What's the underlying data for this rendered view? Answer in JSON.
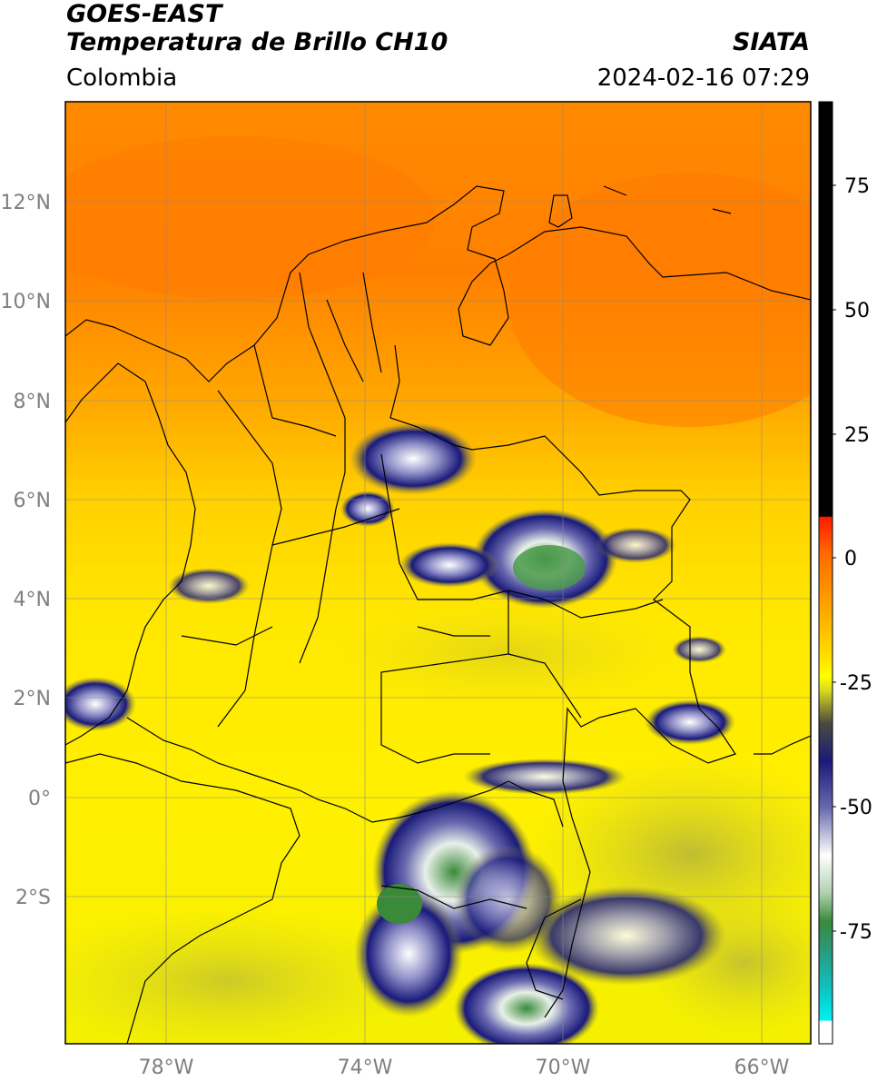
{
  "header": {
    "satellite": "GOES-EAST",
    "product": "Temperatura de Brillo CH10",
    "source": "SIATA",
    "region": "Colombia",
    "datetime": "2024-02-16 07:29"
  },
  "axes": {
    "lat_ticks": [
      "12°N",
      "10°N",
      "8°N",
      "6°N",
      "4°N",
      "2°N",
      "0°",
      "2°S"
    ],
    "lon_ticks": [
      "78°W",
      "74°W",
      "70°W",
      "66°W"
    ]
  },
  "colorbar": {
    "ticks": [
      "75",
      "50",
      "25",
      "0",
      "-25",
      "-50",
      "-75"
    ],
    "colors": {
      "black": "#000000",
      "red": "#ff1a00",
      "orange": "#ff8a00",
      "yellow": "#ffff00",
      "olive": "#b6b43a",
      "navy": "#1a1a7a",
      "white": "#ffffff",
      "green": "#3a8a3a",
      "cyan": "#00e0e0"
    }
  }
}
